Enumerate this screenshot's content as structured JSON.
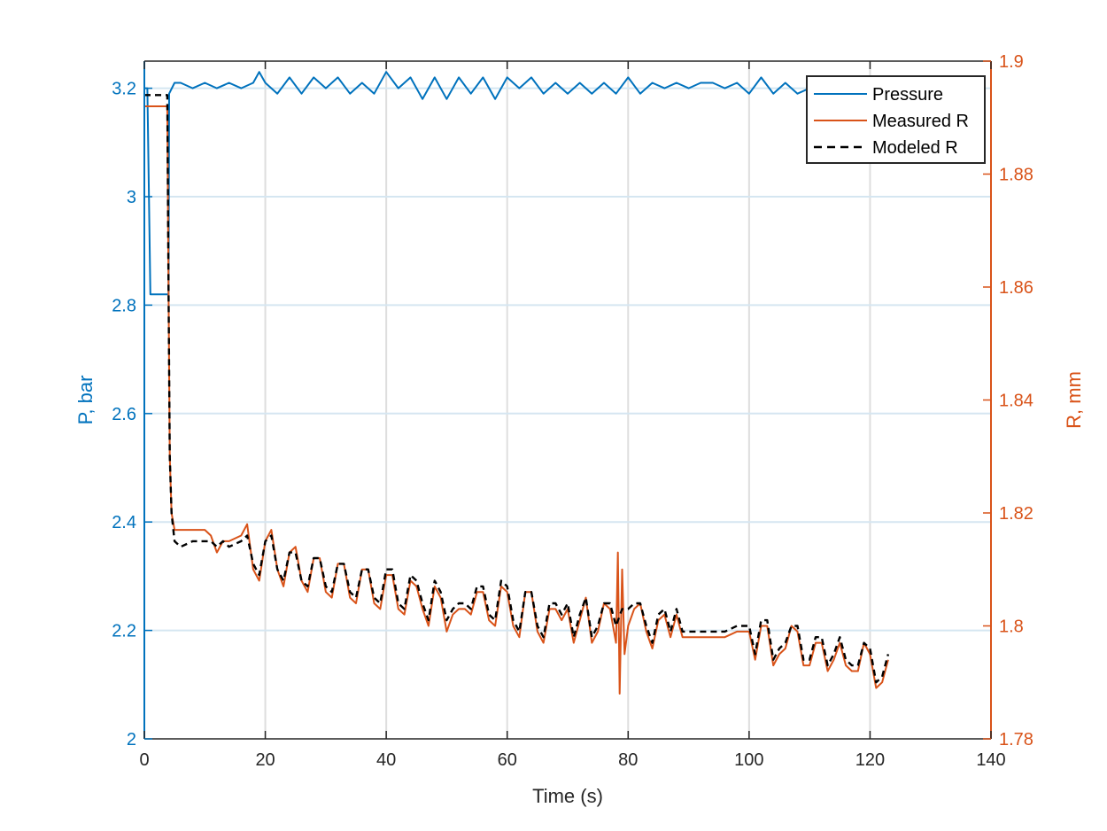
{
  "chart_data": {
    "type": "line",
    "xlabel": "Time (s)",
    "ylabel_left": "P, bar",
    "ylabel_right": "R, mm",
    "xlim": [
      0,
      140
    ],
    "ylim_left": [
      2,
      3.25
    ],
    "ylim_right": [
      1.78,
      1.9
    ],
    "x_ticks": [
      "0",
      "20",
      "40",
      "60",
      "80",
      "100",
      "120",
      "140"
    ],
    "y_left_ticks": [
      "2",
      "2.2",
      "2.4",
      "2.6",
      "2.8",
      "3",
      "3.2"
    ],
    "y_right_ticks": [
      "1.78",
      "1.8",
      "1.82",
      "1.84",
      "1.86",
      "1.88",
      "1.9"
    ],
    "grid": true,
    "legend_position": "top-right",
    "colors": {
      "pressure": "#0072BD",
      "measured": "#D95319",
      "modeled": "#000000",
      "left_axis": "#0072BD",
      "right_axis": "#D95319"
    },
    "series": [
      {
        "name": "Pressure",
        "axis": "left",
        "x": [
          0,
          0.5,
          1,
          3.5,
          4,
          4.1,
          5,
          6,
          8,
          10,
          12,
          14,
          16,
          18,
          19,
          20,
          22,
          24,
          26,
          28,
          30,
          32,
          34,
          36,
          38,
          40,
          42,
          44,
          46,
          48,
          50,
          52,
          54,
          56,
          58,
          60,
          62,
          64,
          66,
          68,
          70,
          72,
          74,
          76,
          78,
          80,
          82,
          84,
          86,
          88,
          90,
          92,
          94,
          96,
          98,
          100,
          102,
          104,
          106,
          108,
          110
        ],
        "y": [
          3.2,
          3.2,
          2.82,
          2.82,
          2.82,
          3.19,
          3.21,
          3.21,
          3.2,
          3.21,
          3.2,
          3.21,
          3.2,
          3.21,
          3.23,
          3.21,
          3.19,
          3.22,
          3.19,
          3.22,
          3.2,
          3.22,
          3.19,
          3.21,
          3.19,
          3.23,
          3.2,
          3.22,
          3.18,
          3.22,
          3.18,
          3.22,
          3.19,
          3.22,
          3.18,
          3.22,
          3.2,
          3.22,
          3.19,
          3.21,
          3.19,
          3.21,
          3.19,
          3.21,
          3.19,
          3.22,
          3.19,
          3.21,
          3.2,
          3.21,
          3.2,
          3.21,
          3.21,
          3.2,
          3.21,
          3.19,
          3.22,
          3.19,
          3.21,
          3.19,
          3.2
        ]
      },
      {
        "name": "Measured R",
        "axis": "right",
        "x": [
          0,
          1,
          2,
          3,
          3.8,
          4,
          4.2,
          4.5,
          5,
          6,
          8,
          10,
          11,
          12,
          13,
          14,
          16,
          17,
          18,
          19,
          20,
          21,
          22,
          23,
          24,
          25,
          26,
          27,
          28,
          29,
          30,
          31,
          32,
          33,
          34,
          35,
          36,
          37,
          38,
          39,
          40,
          41,
          42,
          43,
          44,
          45,
          46,
          47,
          48,
          49,
          50,
          51,
          52,
          53,
          54,
          55,
          56,
          57,
          58,
          59,
          60,
          61,
          62,
          63,
          64,
          65,
          66,
          67,
          68,
          69,
          70,
          71,
          72,
          73,
          74,
          75,
          76,
          77,
          78,
          78.3,
          78.6,
          79,
          79.4,
          80,
          81,
          82,
          83,
          84,
          85,
          86,
          87,
          88,
          89,
          90,
          92,
          94,
          96,
          98,
          100,
          101,
          102,
          103,
          104,
          105,
          106,
          107,
          108,
          109,
          110,
          111,
          112,
          113,
          114,
          115,
          116,
          117,
          118,
          119,
          120,
          121,
          122,
          123
        ],
        "y": [
          1.892,
          1.892,
          1.892,
          1.892,
          1.892,
          1.86,
          1.83,
          1.82,
          1.817,
          1.817,
          1.817,
          1.817,
          1.816,
          1.813,
          1.815,
          1.815,
          1.816,
          1.818,
          1.81,
          1.808,
          1.815,
          1.817,
          1.81,
          1.807,
          1.813,
          1.814,
          1.808,
          1.806,
          1.812,
          1.812,
          1.806,
          1.805,
          1.811,
          1.811,
          1.805,
          1.804,
          1.81,
          1.81,
          1.804,
          1.803,
          1.809,
          1.809,
          1.803,
          1.802,
          1.808,
          1.807,
          1.803,
          1.8,
          1.807,
          1.805,
          1.799,
          1.802,
          1.803,
          1.803,
          1.802,
          1.806,
          1.806,
          1.801,
          1.8,
          1.807,
          1.806,
          1.8,
          1.798,
          1.806,
          1.806,
          1.799,
          1.797,
          1.803,
          1.803,
          1.801,
          1.803,
          1.797,
          1.801,
          1.805,
          1.797,
          1.799,
          1.804,
          1.803,
          1.797,
          1.813,
          1.788,
          1.81,
          1.795,
          1.8,
          1.803,
          1.804,
          1.799,
          1.796,
          1.801,
          1.802,
          1.798,
          1.802,
          1.798,
          1.798,
          1.798,
          1.798,
          1.798,
          1.799,
          1.799,
          1.794,
          1.8,
          1.8,
          1.793,
          1.795,
          1.796,
          1.8,
          1.799,
          1.793,
          1.793,
          1.797,
          1.797,
          1.792,
          1.794,
          1.797,
          1.793,
          1.792,
          1.792,
          1.797,
          1.795,
          1.789,
          1.79,
          1.794
        ]
      },
      {
        "name": "Modeled R",
        "axis": "right",
        "x": [
          0,
          1,
          2,
          3,
          3.8,
          4,
          4.2,
          4.5,
          5,
          6,
          8,
          10,
          11,
          12,
          13,
          14,
          16,
          17,
          18,
          19,
          20,
          21,
          22,
          23,
          24,
          25,
          26,
          27,
          28,
          29,
          30,
          31,
          32,
          33,
          34,
          35,
          36,
          37,
          38,
          39,
          40,
          41,
          42,
          43,
          44,
          45,
          46,
          47,
          48,
          49,
          50,
          51,
          52,
          53,
          54,
          55,
          56,
          57,
          58,
          59,
          60,
          61,
          62,
          63,
          64,
          65,
          66,
          67,
          68,
          69,
          70,
          71,
          72,
          73,
          74,
          75,
          76,
          77,
          78,
          79,
          80,
          81,
          82,
          83,
          84,
          85,
          86,
          87,
          88,
          89,
          90,
          92,
          94,
          96,
          98,
          100,
          101,
          102,
          103,
          104,
          105,
          106,
          107,
          108,
          109,
          110,
          111,
          112,
          113,
          114,
          115,
          116,
          117,
          118,
          119,
          120,
          121,
          122,
          123
        ],
        "y": [
          1.894,
          1.894,
          1.894,
          1.894,
          1.894,
          1.86,
          1.83,
          1.82,
          1.815,
          1.814,
          1.815,
          1.815,
          1.815,
          1.814,
          1.815,
          1.814,
          1.815,
          1.816,
          1.811,
          1.809,
          1.815,
          1.816,
          1.81,
          1.808,
          1.813,
          1.813,
          1.808,
          1.807,
          1.812,
          1.812,
          1.807,
          1.806,
          1.811,
          1.811,
          1.806,
          1.805,
          1.81,
          1.81,
          1.805,
          1.804,
          1.81,
          1.81,
          1.804,
          1.803,
          1.809,
          1.808,
          1.804,
          1.801,
          1.808,
          1.806,
          1.801,
          1.803,
          1.804,
          1.804,
          1.803,
          1.807,
          1.807,
          1.802,
          1.801,
          1.808,
          1.807,
          1.801,
          1.799,
          1.806,
          1.806,
          1.8,
          1.798,
          1.804,
          1.804,
          1.802,
          1.804,
          1.798,
          1.802,
          1.805,
          1.798,
          1.8,
          1.804,
          1.804,
          1.8,
          1.803,
          1.803,
          1.804,
          1.804,
          1.8,
          1.797,
          1.802,
          1.803,
          1.799,
          1.803,
          1.799,
          1.799,
          1.799,
          1.799,
          1.799,
          1.8,
          1.8,
          1.795,
          1.801,
          1.801,
          1.794,
          1.796,
          1.797,
          1.8,
          1.8,
          1.794,
          1.794,
          1.798,
          1.798,
          1.793,
          1.795,
          1.798,
          1.794,
          1.793,
          1.793,
          1.797,
          1.796,
          1.79,
          1.791,
          1.795
        ]
      }
    ]
  }
}
